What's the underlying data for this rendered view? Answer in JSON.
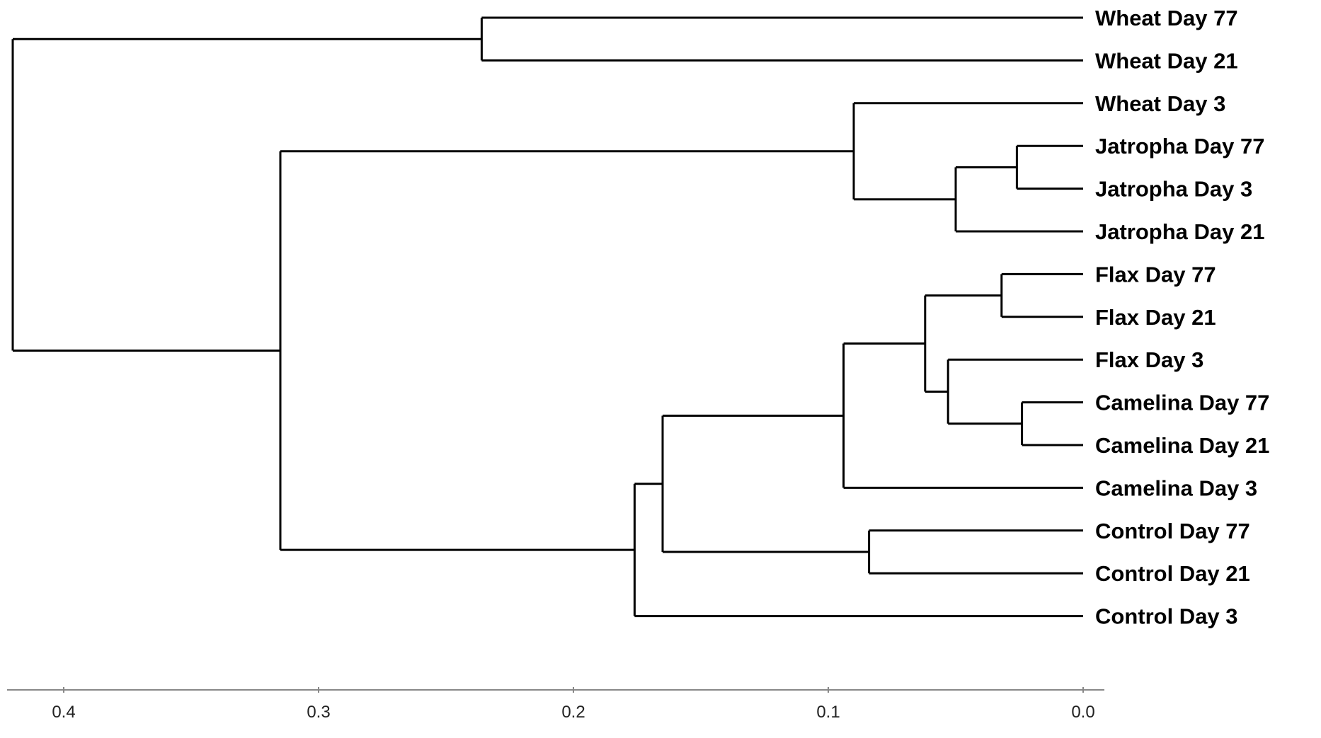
{
  "leaves": [
    {
      "id": "wheat77",
      "label": "Wheat  Day 77"
    },
    {
      "id": "wheat21",
      "label": "Wheat  Day 21"
    },
    {
      "id": "wheat3",
      "label": "Wheat  Day 3"
    },
    {
      "id": "jatropha77",
      "label": "Jatropha  Day 77"
    },
    {
      "id": "jatropha3",
      "label": "Jatropha  Day 3"
    },
    {
      "id": "jatropha21",
      "label": "Jatropha  Day 21"
    },
    {
      "id": "flax77",
      "label": "Flax  Day 77"
    },
    {
      "id": "flax21",
      "label": "Flax  Day 21"
    },
    {
      "id": "flax3",
      "label": "Flax  Day 3"
    },
    {
      "id": "camelina77",
      "label": "Camelina  Day 77"
    },
    {
      "id": "camelina21",
      "label": "Camelina  Day 21"
    },
    {
      "id": "camelina3",
      "label": "Camelina  Day 3"
    },
    {
      "id": "control77",
      "label": "Control  Day 77"
    },
    {
      "id": "control21",
      "label": "Control  Day 21"
    },
    {
      "id": "control3",
      "label": "Control  Day 3"
    }
  ],
  "merges": [
    {
      "id": "n_jat77_jat3",
      "height": 0.026,
      "children": [
        "jatropha77",
        "jatropha3"
      ]
    },
    {
      "id": "n_jat",
      "height": 0.05,
      "children": [
        "n_jat77_jat3",
        "jatropha21"
      ]
    },
    {
      "id": "n_wheat3_jat",
      "height": 0.09,
      "children": [
        "wheat3",
        "n_jat"
      ]
    },
    {
      "id": "n_flax77_21",
      "height": 0.032,
      "children": [
        "flax77",
        "flax21"
      ]
    },
    {
      "id": "n_cam77_21",
      "height": 0.024,
      "children": [
        "camelina77",
        "camelina21"
      ]
    },
    {
      "id": "n_flax3_cam",
      "height": 0.053,
      "children": [
        "flax3",
        "n_cam77_21"
      ]
    },
    {
      "id": "n_flax_cam",
      "height": 0.062,
      "children": [
        "n_flax77_21",
        "n_flax3_cam"
      ]
    },
    {
      "id": "n_flaxcam_cam3",
      "height": 0.094,
      "children": [
        "n_flax_cam",
        "camelina3"
      ]
    },
    {
      "id": "n_ctrl77_21",
      "height": 0.084,
      "children": [
        "control77",
        "control21"
      ]
    },
    {
      "id": "n_fc_ctrl",
      "height": 0.165,
      "children": [
        "n_flaxcam_cam3",
        "n_ctrl77_21"
      ]
    },
    {
      "id": "n_lower",
      "height": 0.176,
      "children": [
        "n_fc_ctrl",
        "control3"
      ]
    },
    {
      "id": "n_wheat77_21",
      "height": 0.236,
      "children": [
        "wheat77",
        "wheat21"
      ]
    },
    {
      "id": "n_mid",
      "height": 0.315,
      "children": [
        "n_wheat3_jat",
        "n_lower"
      ]
    },
    {
      "id": "n_root",
      "height": 0.42,
      "children": [
        "n_wheat77_21",
        "n_mid"
      ]
    }
  ],
  "axis": {
    "range": [
      0.42,
      0.0
    ],
    "ticks": [
      0.4,
      0.3,
      0.2,
      0.1,
      0.0
    ],
    "tick_labels": [
      "0.4",
      "0.3",
      "0.2",
      "0.1",
      "0.0"
    ]
  },
  "colors": {
    "branch": "#000000",
    "axis": "#888888",
    "text": "#000000",
    "tick_text": "#222222"
  }
}
